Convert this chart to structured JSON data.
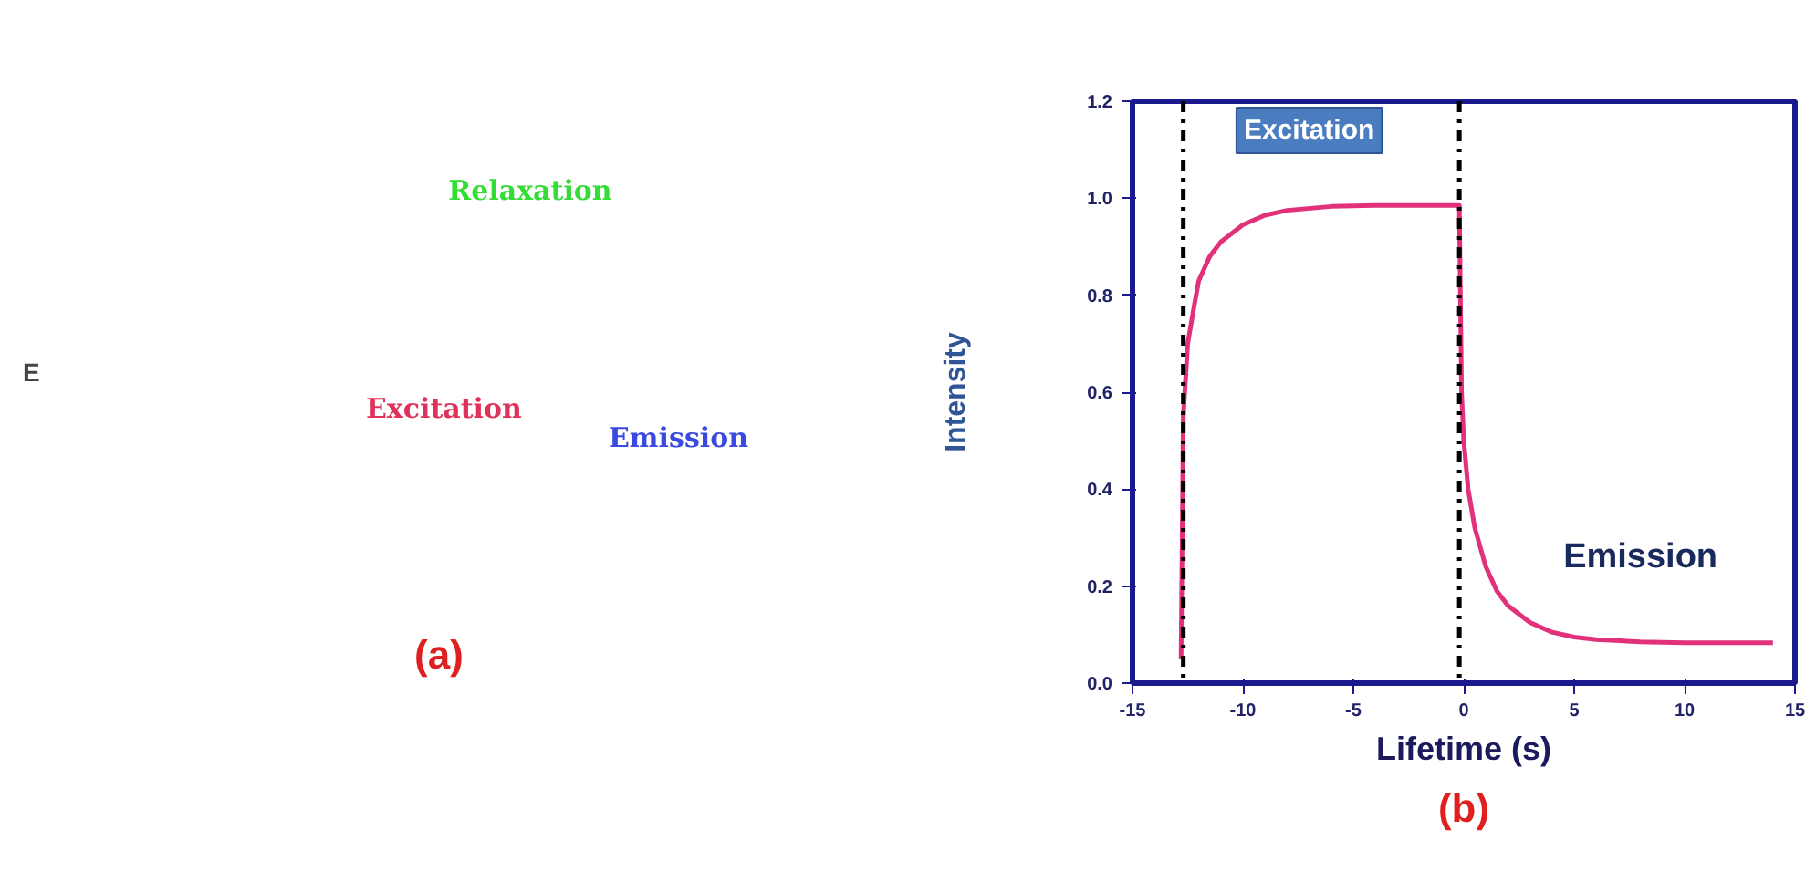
{
  "chart_data": [
    {
      "type": "other",
      "ylabel": "E",
      "annotations": [
        "Relaxation",
        "Excitation",
        "Emission",
        "(a)"
      ]
    },
    {
      "type": "line",
      "xlabel": "Lifetime (s)",
      "ylabel": "Intensity",
      "xlim": [
        -15,
        15
      ],
      "ylim": [
        0,
        1.2
      ],
      "xticks": [
        -15,
        -10,
        -5,
        0,
        5,
        10,
        15
      ],
      "yticks": [
        {
          "value": 0,
          "label": "0.0"
        },
        0.2,
        0.4,
        0.6,
        0.8,
        {
          "value": 1,
          "label": "1.0"
        },
        1.2
      ],
      "grid": false,
      "marker": "none",
      "line_style": "solid",
      "series": [
        {
          "color": "#e0317a",
          "x": [
            -12.8,
            -12.7,
            -12.5,
            -12.2,
            -12,
            -11.5,
            -11,
            -10,
            -9,
            -8,
            -6,
            -4,
            -0.2,
            -0.1,
            0,
            0.2,
            0.5,
            1,
            1.5,
            2,
            3,
            4,
            5,
            6,
            8,
            10,
            14
          ],
          "values": [
            0.05,
            0.55,
            0.7,
            0.78,
            0.83,
            0.88,
            0.91,
            0.945,
            0.965,
            0.975,
            0.983,
            0.985,
            0.985,
            0.6,
            0.5,
            0.4,
            0.32,
            0.24,
            0.19,
            0.16,
            0.125,
            0.105,
            0.095,
            0.09,
            0.085,
            0.083,
            0.083
          ]
        }
      ],
      "ref_lines": [
        {
          "axis": "x",
          "value": -12.7,
          "color": "#000000",
          "line_style": "dashdot"
        },
        {
          "axis": "x",
          "value": -0.2,
          "color": "#000000",
          "line_style": "dashdot"
        }
      ],
      "annotations": [
        "Excitation",
        "Emission",
        "(b)"
      ]
    }
  ]
}
